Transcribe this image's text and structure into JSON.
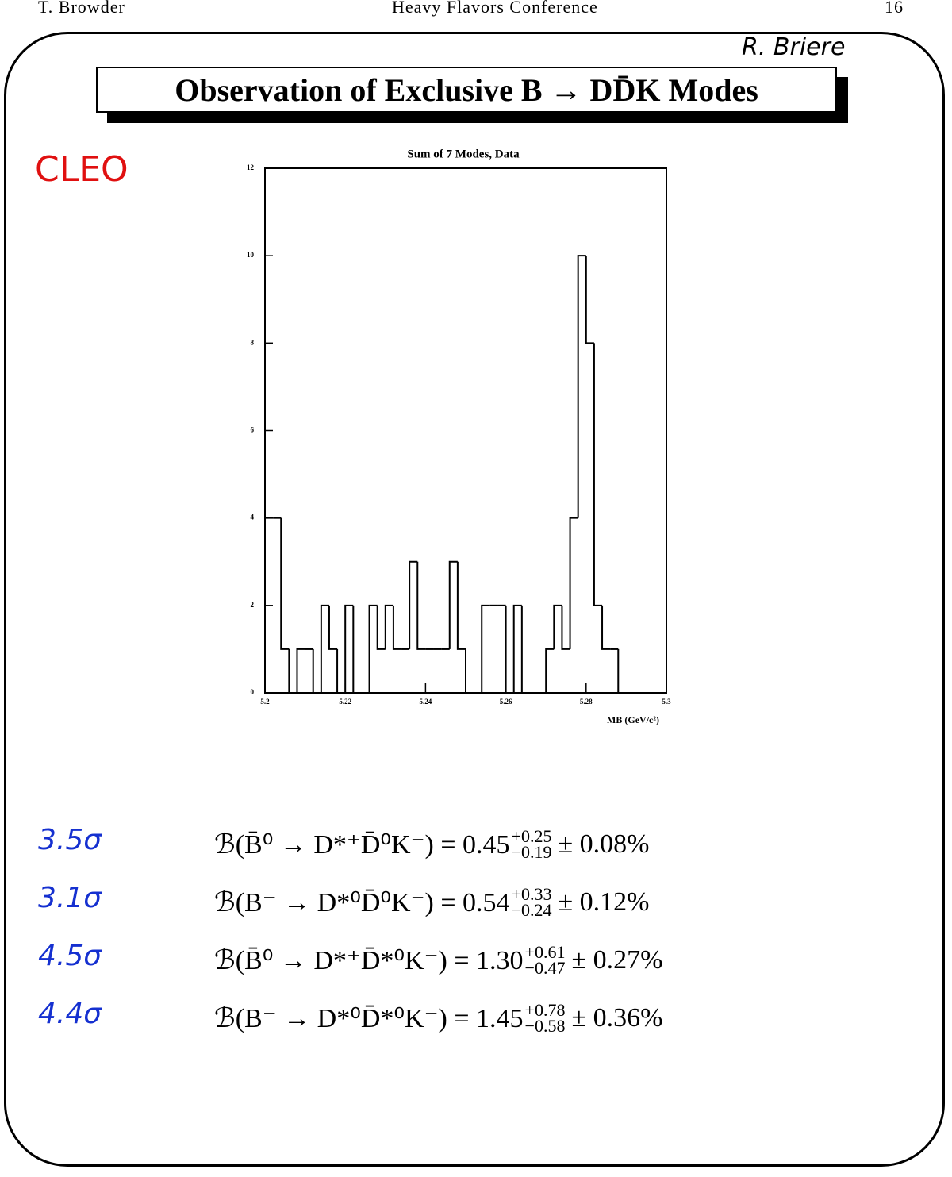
{
  "header": {
    "author": "T. Browder",
    "conference": "Heavy Flavors Conference",
    "page": "16"
  },
  "annotation_top": "R. Briere",
  "annotation_left": "CLEO",
  "title": "Observation of Exclusive B → DD̄K Modes",
  "chart_data": {
    "type": "histogram",
    "title": "Sum of 7 Modes, Data",
    "xlabel": "MB (GeV/c²)",
    "bins": [
      5.2,
      5.202,
      5.204,
      5.206,
      5.208,
      5.21,
      5.212,
      5.214,
      5.216,
      5.218,
      5.22,
      5.222,
      5.224,
      5.226,
      5.228,
      5.23,
      5.232,
      5.234,
      5.236,
      5.238,
      5.24,
      5.242,
      5.244,
      5.246,
      5.248,
      5.25,
      5.252,
      5.254,
      5.256,
      5.258,
      5.26,
      5.262,
      5.264,
      5.266,
      5.268,
      5.27,
      5.272,
      5.274,
      5.276,
      5.278,
      5.28,
      5.282,
      5.284,
      5.286,
      5.288,
      5.29,
      5.292,
      5.294,
      5.296,
      5.298,
      5.3
    ],
    "values": [
      4,
      4,
      1,
      0,
      1,
      1,
      0,
      2,
      1,
      0,
      2,
      0,
      0,
      2,
      1,
      2,
      1,
      1,
      3,
      1,
      1,
      1,
      1,
      3,
      1,
      0,
      0,
      2,
      2,
      2,
      0,
      2,
      0,
      0,
      0,
      1,
      2,
      1,
      4,
      10,
      8,
      2,
      1,
      1,
      0,
      0,
      0,
      0,
      0,
      0
    ],
    "color": "#000000",
    "xlim": [
      5.2,
      5.3
    ],
    "xticks": [
      5.2,
      5.22,
      5.24,
      5.26,
      5.28,
      5.3
    ],
    "ylim": [
      0,
      12
    ],
    "yticks": [
      0,
      2,
      4,
      6,
      8,
      10,
      12
    ]
  },
  "results": [
    {
      "significance": "3.5σ",
      "lhs": "ℬ(B̄⁰ → D*⁺D̄⁰K⁻) = 0.45",
      "plus": "+0.25",
      "minus": "−0.19",
      "syst": "± 0.08%"
    },
    {
      "significance": "3.1σ",
      "lhs": "ℬ(B⁻ → D*⁰D̄⁰K⁻) = 0.54",
      "plus": "+0.33",
      "minus": "−0.24",
      "syst": "± 0.12%"
    },
    {
      "significance": "4.5σ",
      "lhs": "ℬ(B̄⁰ → D*⁺D̄*⁰K⁻) = 1.30",
      "plus": "+0.61",
      "minus": "−0.47",
      "syst": "± 0.27%"
    },
    {
      "significance": "4.4σ",
      "lhs": "ℬ(B⁻ → D*⁰D̄*⁰K⁻) = 1.45",
      "plus": "+0.78",
      "minus": "−0.58",
      "syst": "± 0.36%"
    }
  ]
}
